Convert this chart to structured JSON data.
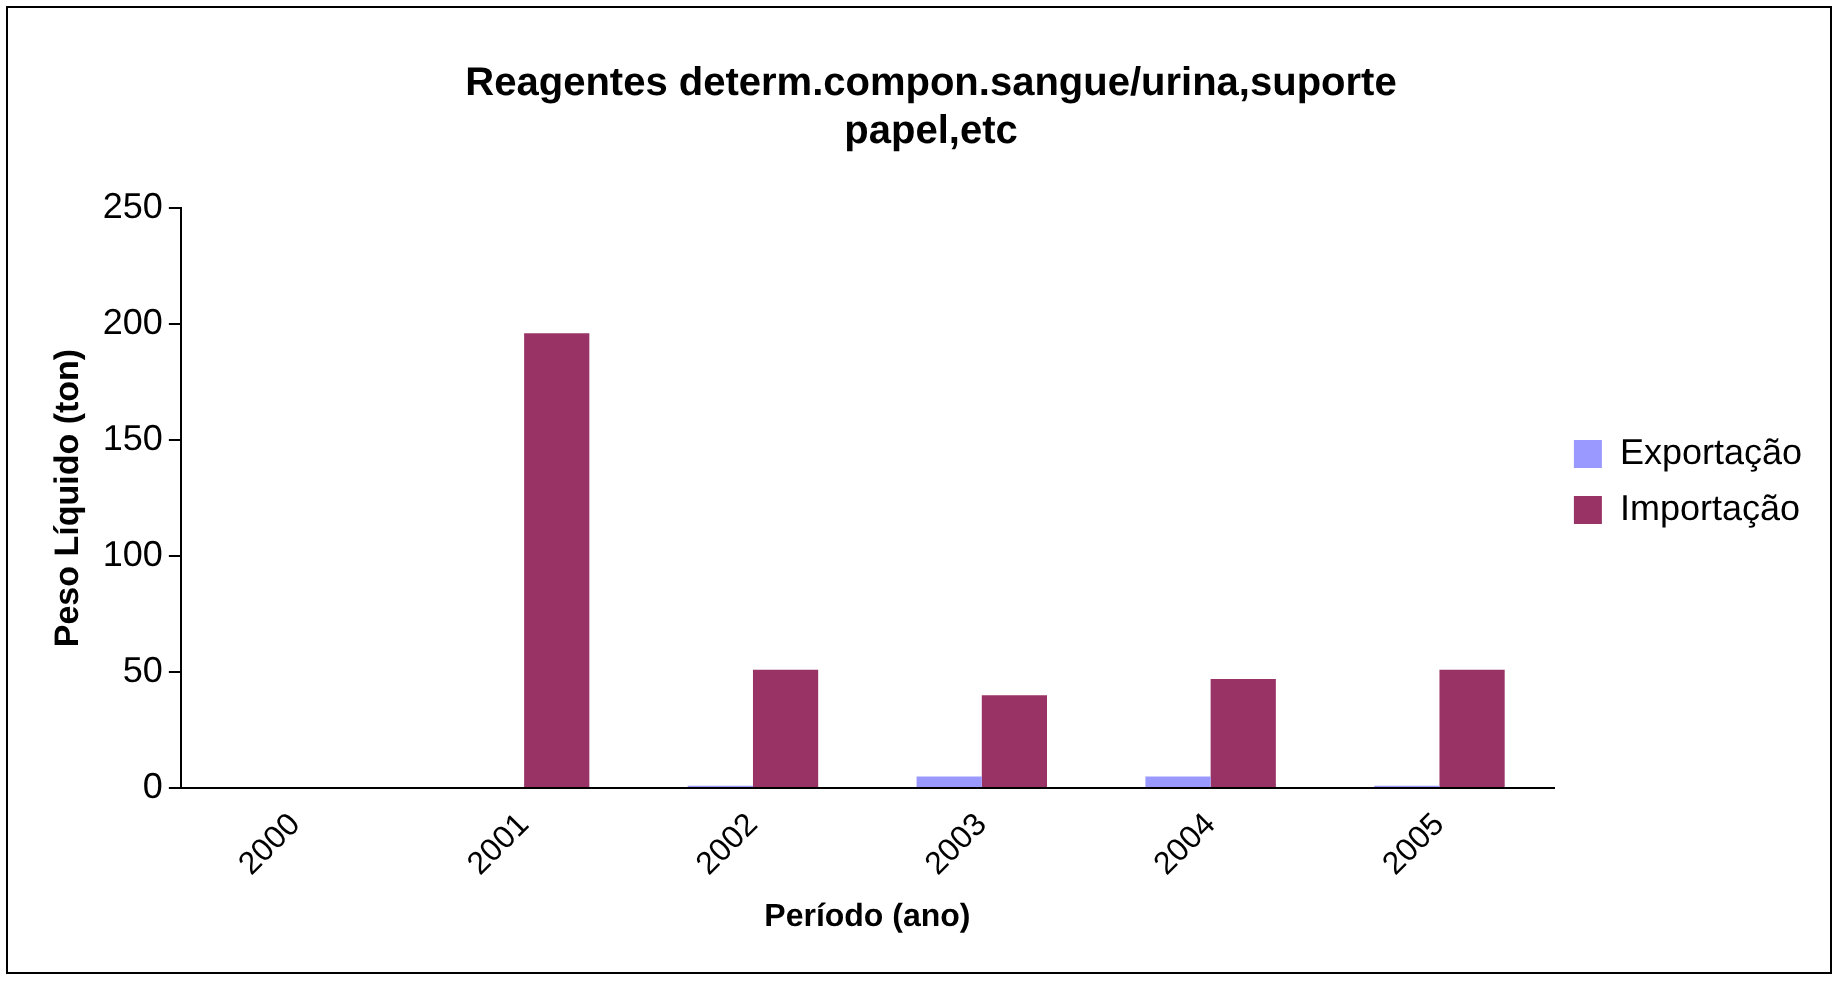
{
  "chart_data": {
    "type": "bar",
    "title": "Reagentes determ.compon.sangue/urina,suporte papel,etc",
    "xlabel": "Período (ano)",
    "ylabel": "Peso Líquido (ton)",
    "categories": [
      "2000",
      "2001",
      "2002",
      "2003",
      "2004",
      "2005"
    ],
    "series": [
      {
        "name": "Exportação",
        "color": "#9999ff",
        "values": [
          0,
          0,
          1,
          5,
          5,
          1
        ]
      },
      {
        "name": "Importação",
        "color": "#993366",
        "values": [
          0,
          196,
          51,
          40,
          47,
          51
        ]
      }
    ],
    "ylim": [
      0,
      250
    ],
    "yticks": [
      0,
      50,
      100,
      150,
      200,
      250
    ],
    "grid": false,
    "legend": "right"
  }
}
